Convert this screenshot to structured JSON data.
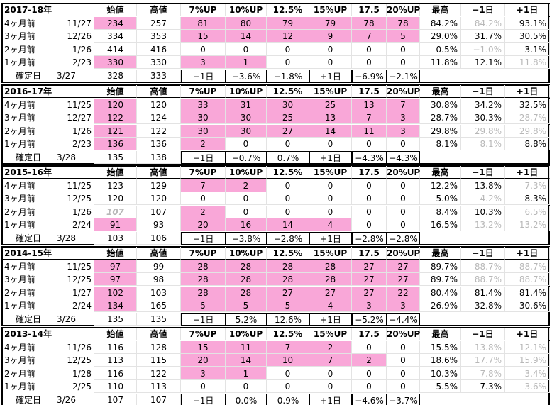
{
  "blocks": [
    {
      "title": "2017-18年",
      "header": [
        "始値",
        "高値",
        "7%UP",
        "10%UP",
        "12.5%",
        "15%UP",
        "17.5",
        "20%UP",
        "最高",
        "−1日",
        "+1日"
      ],
      "rows": [
        {
          "label": "4ヶ月前",
          "date": "11/27",
          "cells": [
            "234",
            "257",
            "81",
            "80",
            "79",
            "79",
            "78",
            "78",
            "84.2%",
            "84.2%",
            "93.1%"
          ]
        },
        {
          "label": "3ヶ月前",
          "date": "12/26",
          "cells": [
            "334",
            "353",
            "15",
            "14",
            "12",
            "9",
            "7",
            "5",
            "29.0%",
            "31.7%",
            "30.5%"
          ]
        },
        {
          "label": "2ヶ月前",
          "date": "1/26",
          "cells": [
            "414",
            "416",
            "0",
            "0",
            "0",
            "0",
            "0",
            "0",
            "0.5%",
            "−1.0%",
            "3.1%"
          ]
        },
        {
          "label": "1ヶ月前",
          "date": "2/23",
          "cells": [
            "330",
            "330",
            "3",
            "1",
            "0",
            "0",
            "0",
            "0",
            "11.8%",
            "12.1%",
            "11.8%"
          ]
        }
      ],
      "final": {
        "label": "確定日",
        "date": "3/27",
        "cells": [
          "328",
          "333",
          "−1日",
          "−3.6%",
          "−1.8%",
          "+1日",
          "−6.9%",
          "−2.1%"
        ]
      }
    },
    {
      "title": "2016-17年",
      "header": [
        "始値",
        "高値",
        "7%UP",
        "10%UP",
        "12.5%",
        "15%UP",
        "17.5",
        "20%UP",
        "最高",
        "−1日",
        "+1日"
      ],
      "rows": [
        {
          "label": "4ヶ月前",
          "date": "11/25",
          "cells": [
            "120",
            "120",
            "33",
            "31",
            "30",
            "25",
            "13",
            "7",
            "30.8%",
            "34.2%",
            "32.5%"
          ]
        },
        {
          "label": "3ヶ月前",
          "date": "12/27",
          "cells": [
            "122",
            "124",
            "30",
            "30",
            "25",
            "13",
            "7",
            "3",
            "28.7%",
            "30.3%",
            "28.7%"
          ]
        },
        {
          "label": "2ヶ月前",
          "date": "1/26",
          "cells": [
            "121",
            "122",
            "30",
            "30",
            "27",
            "14",
            "11",
            "3",
            "29.8%",
            "29.8%",
            "29.8%"
          ]
        },
        {
          "label": "1ヶ月前",
          "date": "2/23",
          "cells": [
            "136",
            "136",
            "2",
            "0",
            "0",
            "0",
            "0",
            "0",
            "8.1%",
            "8.1%",
            "8.8%"
          ]
        }
      ],
      "final": {
        "label": "確定日",
        "date": "3/28",
        "cells": [
          "135",
          "138",
          "−1日",
          "−0.7%",
          "0.7%",
          "+1日",
          "−4.3%",
          "−4.3%"
        ]
      }
    },
    {
      "title": "2015-16年",
      "header": [
        "始値",
        "高値",
        "7%UP",
        "10%UP",
        "12.5%",
        "15%UP",
        "17.5",
        "20%UP",
        "最高",
        "−1日",
        "+1日"
      ],
      "rows": [
        {
          "label": "4ヶ月前",
          "date": "11/25",
          "cells": [
            "123",
            "129",
            "7",
            "2",
            "0",
            "0",
            "0",
            "0",
            "12.2%",
            "13.8%",
            "7.3%"
          ]
        },
        {
          "label": "3ヶ月前",
          "date": "12/25",
          "cells": [
            "120",
            "120",
            "0",
            "0",
            "0",
            "0",
            "0",
            "0",
            "5.0%",
            "4.2%",
            "8.3%"
          ]
        },
        {
          "label": "2ヶ月前",
          "date": "1/26",
          "cells": [
            "107",
            "107",
            "2",
            "0",
            "0",
            "0",
            "0",
            "0",
            "8.4%",
            "10.3%",
            "6.5%"
          ]
        },
        {
          "label": "1ヶ月前",
          "date": "2/24",
          "cells": [
            "91",
            "93",
            "20",
            "16",
            "14",
            "4",
            "0",
            "0",
            "16.5%",
            "13.2%",
            "13.2%"
          ]
        }
      ],
      "final": {
        "label": "確定日",
        "date": "3/28",
        "cells": [
          "103",
          "106",
          "−1日",
          "−3.8%",
          "−2.8%",
          "+1日",
          "−2.8%",
          "−2.8%"
        ]
      }
    },
    {
      "title": "2014-15年",
      "header": [
        "始値",
        "高値",
        "7%UP",
        "10%UP",
        "12.5%",
        "15%UP",
        "17.5",
        "20%UP",
        "最高",
        "−1日",
        "+1日"
      ],
      "rows": [
        {
          "label": "4ヶ月前",
          "date": "11/25",
          "cells": [
            "97",
            "99",
            "28",
            "28",
            "28",
            "28",
            "27",
            "27",
            "89.7%",
            "88.7%",
            "88.7%"
          ]
        },
        {
          "label": "3ヶ月前",
          "date": "12/25",
          "cells": [
            "97",
            "98",
            "28",
            "28",
            "28",
            "28",
            "27",
            "27",
            "89.7%",
            "88.7%",
            "88.7%"
          ]
        },
        {
          "label": "2ヶ月前",
          "date": "1/27",
          "cells": [
            "102",
            "103",
            "28",
            "28",
            "27",
            "27",
            "27",
            "22",
            "80.4%",
            "81.4%",
            "81.4%"
          ]
        },
        {
          "label": "1ヶ月前",
          "date": "2/24",
          "cells": [
            "134",
            "165",
            "5",
            "5",
            "5",
            "4",
            "3",
            "3",
            "26.9%",
            "32.8%",
            "30.6%"
          ]
        }
      ],
      "final": {
        "label": "確定日",
        "date": "3/26",
        "cells": [
          "135",
          "135",
          "−1日",
          "5.2%",
          "12.6%",
          "+1日",
          "−5.2%",
          "−4.4%"
        ]
      }
    },
    {
      "title": "2013-14年",
      "header": [
        "始値",
        "高値",
        "7%UP",
        "10%UP",
        "12.5%",
        "15%UP",
        "17.5",
        "20%UP",
        "最高",
        "−1日",
        "+1日"
      ],
      "rows": [
        {
          "label": "4ヶ月前",
          "date": "11/26",
          "cells": [
            "116",
            "128",
            "15",
            "11",
            "7",
            "2",
            "0",
            "0",
            "15.5%",
            "13.8%",
            "12.1%"
          ]
        },
        {
          "label": "3ヶ月前",
          "date": "12/25",
          "cells": [
            "113",
            "115",
            "20",
            "14",
            "10",
            "7",
            "2",
            "0",
            "18.6%",
            "17.7%",
            "15.9%"
          ]
        },
        {
          "label": "2ヶ月前",
          "date": "1/28",
          "cells": [
            "116",
            "122",
            "3",
            "1",
            "0",
            "0",
            "0",
            "0",
            "10.3%",
            "7.8%",
            "3.4%"
          ]
        },
        {
          "label": "1ヶ月前",
          "date": "2/25",
          "cells": [
            "110",
            "113",
            "0",
            "0",
            "0",
            "0",
            "0",
            "0",
            "5.5%",
            "7.3%",
            "3.6%"
          ]
        }
      ],
      "final": {
        "label": "確定日",
        "date": "3/26",
        "cells": [
          "107",
          "107",
          "−1日",
          "0.0%",
          "0.9%",
          "+1日",
          "−4.6%",
          "−3.7%"
        ]
      }
    }
  ]
}
